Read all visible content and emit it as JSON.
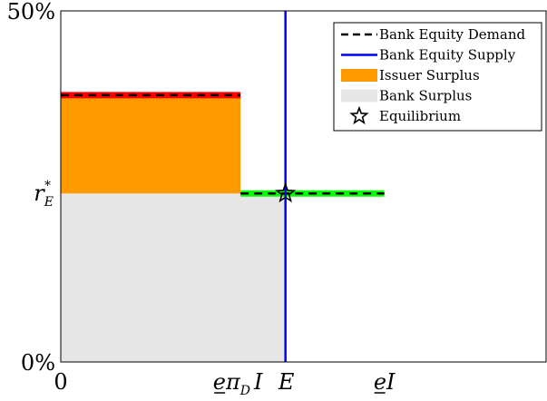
{
  "chart_data": {
    "type": "area",
    "title": "",
    "xlabel": "",
    "ylabel": "",
    "ylim": [
      0,
      50
    ],
    "y_ticks": [
      {
        "value": 0,
        "label": "0%"
      },
      {
        "value": 50,
        "label": "50%"
      }
    ],
    "x_ticks": [
      {
        "value": 0,
        "label": "0"
      }
    ],
    "symbol_ticks": {
      "r_E_star": {
        "value": 24,
        "base": "r",
        "sub": "E",
        "sup": "*"
      },
      "e_piD_I": {
        "value": 4,
        "text": "eπ",
        "sub": "D",
        "after": "I",
        "underlined": "e"
      },
      "E": {
        "value": 5,
        "text": "E"
      },
      "e_I": {
        "value": 7.2,
        "text": "I",
        "underlined": "e"
      }
    },
    "series": [
      {
        "name": "Bank Equity Demand",
        "style": "dashed",
        "color": "#000000",
        "segments": [
          {
            "x": [
              0,
              4
            ],
            "y": [
              38,
              38
            ],
            "highlight": "#ff0000"
          },
          {
            "x": [
              4,
              7.2
            ],
            "y": [
              24,
              24
            ],
            "highlight": "#00ff00"
          }
        ]
      },
      {
        "name": "Bank Equity Supply",
        "style": "solid",
        "color": "#0000ff",
        "x": [
          5,
          5
        ],
        "y": [
          0,
          50
        ]
      },
      {
        "name": "Issuer Surplus",
        "fill": "#ff9900",
        "x": [
          0,
          4
        ],
        "y_bottom": 24,
        "y_top": 38
      },
      {
        "name": "Bank Surplus",
        "fill": "#e6e6e6",
        "region": [
          [
            0,
            0
          ],
          [
            0,
            24
          ],
          [
            4,
            24
          ],
          [
            4,
            24
          ],
          [
            5,
            24
          ],
          [
            5,
            0
          ]
        ]
      },
      {
        "name": "Equilibrium",
        "marker": "star",
        "x": 5,
        "y": 24
      }
    ],
    "x_range": [
      0,
      10.8
    ],
    "legend": {
      "position": "top-right",
      "entries": [
        {
          "label": "Bank Equity Demand",
          "kind": "dashed",
          "color": "#000000"
        },
        {
          "label": "Bank Equity Supply",
          "kind": "line",
          "color": "#0000ff"
        },
        {
          "label": "Issuer Surplus",
          "kind": "patch",
          "color": "#ff9900"
        },
        {
          "label": "Bank Surplus",
          "kind": "patch",
          "color": "#e6e6e6"
        },
        {
          "label": "Equilibrium",
          "kind": "star",
          "color": "#000000"
        }
      ]
    }
  }
}
